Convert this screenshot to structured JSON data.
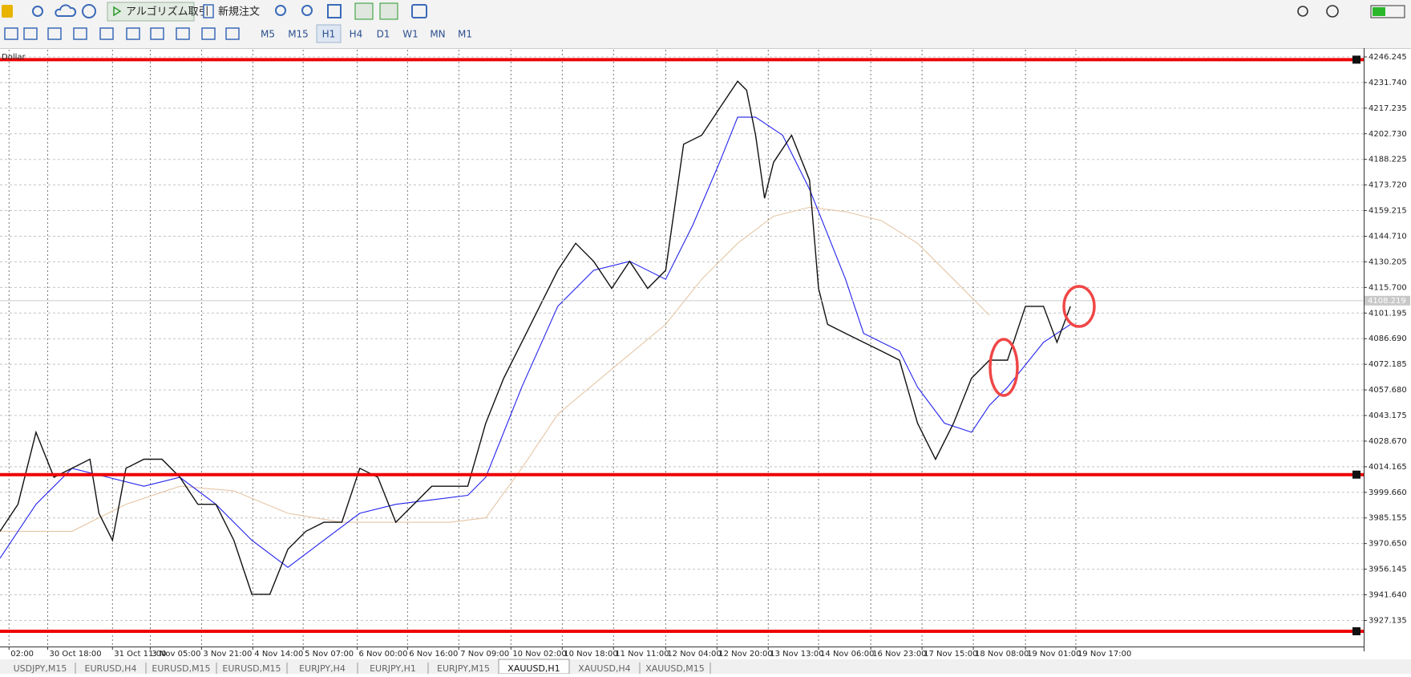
{
  "toolbar": {
    "algo": "アルゴリズム取引",
    "order": "新規注文",
    "timeframes": [
      "M5",
      "M15",
      "H1",
      "H4",
      "D1",
      "W1",
      "MN",
      "M1"
    ]
  },
  "chart": {
    "type": "line",
    "symbol": "Dollar",
    "xlim": [
      0,
      303.2
    ],
    "ylim": [
      3912.35,
      4250.32
    ],
    "xticks": [
      {
        "value": 2,
        "label": "02:00"
      },
      {
        "value": 10.6,
        "label": "30 Oct 18:00"
      },
      {
        "value": 25,
        "label": "31 Oct 11:00"
      },
      {
        "value": 33.4,
        "label": "3 Nov 05:00"
      },
      {
        "value": 44.8,
        "label": "3 Nov 21:00"
      },
      {
        "value": 56.2,
        "label": "4 Nov 14:00"
      },
      {
        "value": 67.4,
        "label": "5 Nov 07:00"
      },
      {
        "value": 79.4,
        "label": "6 Nov 00:00"
      },
      {
        "value": 90.6,
        "label": "6 Nov 16:00"
      },
      {
        "value": 102,
        "label": "7 Nov 09:00"
      },
      {
        "value": 113.6,
        "label": "10 Nov 02:00"
      },
      {
        "value": 125,
        "label": "10 Nov 18:00"
      },
      {
        "value": 136.4,
        "label": "11 Nov 11:00"
      },
      {
        "value": 148,
        "label": "12 Nov 04:00"
      },
      {
        "value": 159.4,
        "label": "12 Nov 20:00"
      },
      {
        "value": 170.8,
        "label": "13 Nov 13:00"
      },
      {
        "value": 182,
        "label": "14 Nov 06:00"
      },
      {
        "value": 193.6,
        "label": "16 Nov 23:00"
      },
      {
        "value": 205,
        "label": "17 Nov 15:00"
      },
      {
        "value": 216.4,
        "label": "18 Nov 08:00"
      },
      {
        "value": 228,
        "label": "19 Nov 01:00"
      },
      {
        "value": 239.2,
        "label": "19 Nov 17:00"
      }
    ],
    "yticks": [
      {
        "value": 4246.245,
        "label": "4246.245"
      },
      {
        "value": 4231.74,
        "label": "4231.740"
      },
      {
        "value": 4217.235,
        "label": "4217.235"
      },
      {
        "value": 4202.73,
        "label": "4202.730"
      },
      {
        "value": 4188.225,
        "label": "4188.225"
      },
      {
        "value": 4173.72,
        "label": "4173.720"
      },
      {
        "value": 4159.215,
        "label": "4159.215"
      },
      {
        "value": 4144.71,
        "label": "4144.710"
      },
      {
        "value": 4130.205,
        "label": "4130.205"
      },
      {
        "value": 4115.7,
        "label": "4115.700"
      },
      {
        "value": 4101.195,
        "label": "4101.195"
      },
      {
        "value": 4086.69,
        "label": "4086.690"
      },
      {
        "value": 4072.185,
        "label": "4072.185"
      },
      {
        "value": 4057.68,
        "label": "4057.680"
      },
      {
        "value": 4043.175,
        "label": "4043.175"
      },
      {
        "value": 4028.67,
        "label": "4028.670"
      },
      {
        "value": 4014.165,
        "label": "4014.165"
      },
      {
        "value": 3999.66,
        "label": "3999.660"
      },
      {
        "value": 3985.155,
        "label": "3985.155"
      },
      {
        "value": 3970.65,
        "label": "3970.650"
      },
      {
        "value": 3956.145,
        "label": "3956.145"
      },
      {
        "value": 3941.64,
        "label": "3941.640"
      },
      {
        "value": 3927.135,
        "label": "3927.135"
      }
    ],
    "grid": true,
    "series": [
      {
        "color": "#111111",
        "x": [
          0,
          4,
          8,
          12,
          16,
          20,
          22,
          25,
          28,
          32,
          36,
          40,
          44,
          48,
          52,
          56,
          60,
          64,
          68,
          72,
          76,
          80,
          84,
          88,
          92,
          96,
          100,
          104,
          108,
          112,
          116,
          120,
          124,
          128,
          132,
          136,
          140,
          144,
          148,
          152,
          156,
          160,
          164,
          166,
          168,
          170,
          172,
          176,
          180,
          182,
          184,
          188,
          192,
          196,
          200,
          204,
          208,
          212,
          216,
          220,
          224,
          228,
          232,
          235,
          238
        ],
        "values": [
          3977.6,
          3992.9,
          4033.7,
          4008.2,
          4013.3,
          4018.4,
          3987.8,
          3972.5,
          4013.3,
          4018.4,
          4018.4,
          4008.2,
          3992.9,
          3992.9,
          3972.5,
          3941.9,
          3941.9,
          3967.4,
          3977.6,
          3982.7,
          3982.7,
          4013.3,
          4008.2,
          3982.7,
          3992.9,
          4003.1,
          4003.1,
          4003.1,
          4038.8,
          4064.3,
          4084.6,
          4105.0,
          4125.4,
          4140.7,
          4130.5,
          4115.2,
          4130.5,
          4115.2,
          4125.4,
          4196.8,
          4201.9,
          4217.2,
          4232.5,
          4227.4,
          4201.9,
          4166.2,
          4186.6,
          4201.9,
          4176.4,
          4115.2,
          4094.8,
          4089.7,
          4084.6,
          4079.6,
          4074.5,
          4038.8,
          4018.4,
          4038.8,
          4064.3,
          4074.5,
          4074.5,
          4105.0,
          4105.0,
          4084.6,
          4105.0
        ]
      },
      {
        "color": "#2222ee",
        "x": [
          0,
          8,
          16,
          24,
          32,
          40,
          48,
          56,
          64,
          72,
          80,
          88,
          96,
          104,
          108,
          116,
          124,
          132,
          140,
          148,
          154,
          160,
          164,
          168,
          174,
          180,
          184,
          188,
          192,
          200,
          204,
          210,
          216,
          220,
          224,
          232,
          238
        ],
        "values": [
          3962.3,
          3992.9,
          4013.3,
          4008.2,
          4003.1,
          4008.2,
          3992.9,
          3972.5,
          3957.2,
          3972.5,
          3987.8,
          3992.9,
          3995.4,
          3998.0,
          4008.2,
          4059.2,
          4105.0,
          4125.4,
          4130.5,
          4120.3,
          4150.9,
          4186.6,
          4212.1,
          4212.1,
          4201.9,
          4171.3,
          4145.8,
          4120.3,
          4089.7,
          4079.6,
          4059.2,
          4038.8,
          4033.7,
          4049.0,
          4059.2,
          4084.6,
          4094.8
        ]
      },
      {
        "color": "#e6c6a6",
        "x": [
          0,
          16,
          28,
          40,
          52,
          64,
          76,
          88,
          100,
          108,
          116,
          124,
          136,
          148,
          156,
          164,
          172,
          180,
          188,
          196,
          204,
          212,
          220
        ],
        "values": [
          3977.6,
          3977.6,
          3992.9,
          4003.1,
          4000.5,
          3987.8,
          3982.7,
          3982.7,
          3982.7,
          3985.2,
          4013.3,
          4043.9,
          4069.4,
          4094.8,
          4120.3,
          4140.7,
          4156.0,
          4161.1,
          4158.6,
          4153.5,
          4140.7,
          4120.3,
          4099.9
        ]
      }
    ],
    "levels": [
      4244.7,
      4009.7,
      3921.0
    ],
    "level_color": "#ee0000",
    "last_price": 4108.219
  },
  "tabs": [
    "USDJPY,M15",
    "EURUSD,H4",
    "EURUSD,M15",
    "EURUSD,M15",
    "EURJPY,H4",
    "EURJPY,H1",
    "EURJPY,M15",
    "XAUUSD,H1",
    "XAUUSD,H4",
    "XAUUSD,M15"
  ]
}
